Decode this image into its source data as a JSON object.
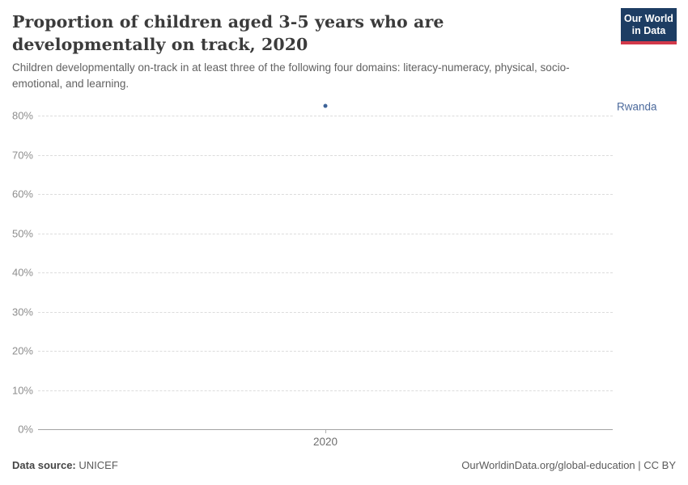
{
  "header": {
    "title": "Proportion of children aged 3-5 years who are developmentally on track, 2020",
    "subtitle": "Children developmentally on-track in at least three of the following four domains: literacy-numeracy, physical, socio-emotional, and learning.",
    "logo": {
      "line1": "Our World",
      "line2": "in Data"
    }
  },
  "chart_data": {
    "type": "scatter",
    "title": "Proportion of children aged 3-5 years who are developmentally on track, 2020",
    "x": [
      2020
    ],
    "xtick_labels": [
      "2020"
    ],
    "series": [
      {
        "name": "Rwanda",
        "values": [
          82.5
        ],
        "color": "#3d6398",
        "label_color": "#4c6a9c"
      }
    ],
    "ylim": [
      0,
      85
    ],
    "yticks": [
      0,
      10,
      20,
      30,
      40,
      50,
      60,
      70,
      80
    ],
    "ytick_suffix": "%",
    "grid": "horizontal-dashed",
    "legend_position": "right-of-plot"
  },
  "footer": {
    "source_label": "Data source:",
    "source_value": "UNICEF",
    "attribution": "OurWorldinData.org/global-education | CC BY"
  },
  "colors": {
    "logo_bg": "#1d3d63",
    "logo_accent": "#d2394a",
    "gridline": "#dcdcdc",
    "axis_line": "#a3a3a3"
  }
}
